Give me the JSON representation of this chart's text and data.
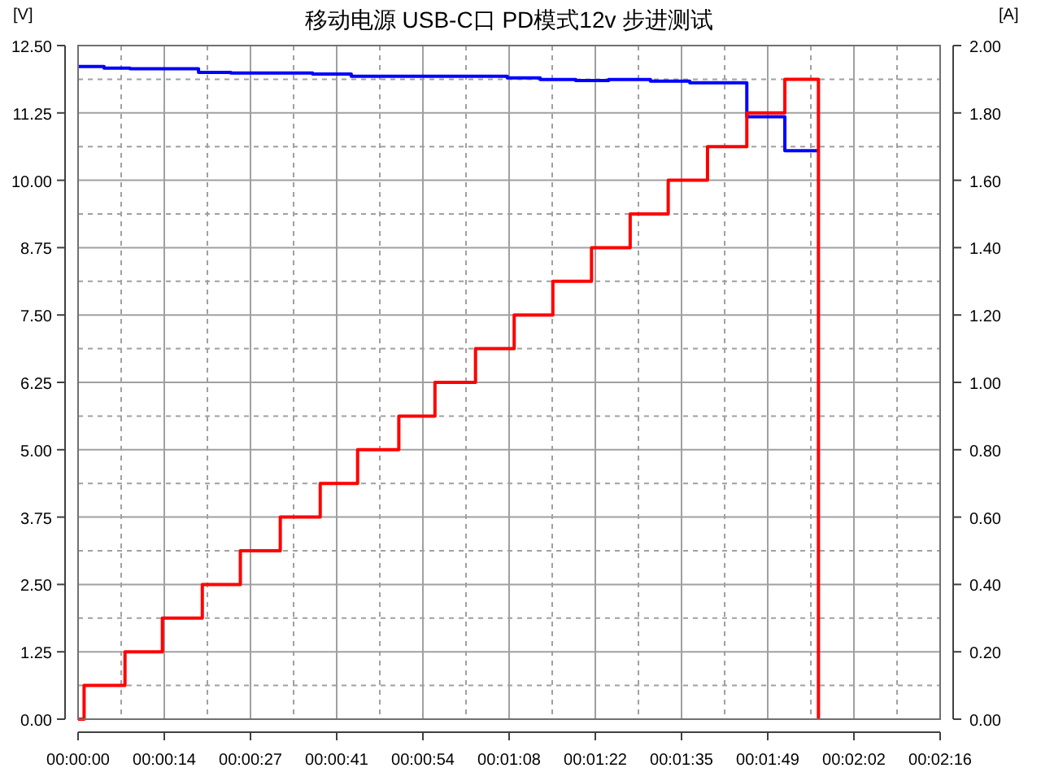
{
  "chart_data": {
    "type": "step",
    "title": "移动电源  USB-C口  PD模式12v 步进测试",
    "ylabel": "[V]",
    "y2label": "[A]",
    "xlim": [
      0,
      136
    ],
    "xticks": [
      {
        "value": 0,
        "label": "00:00:00"
      },
      {
        "value": 13.6,
        "label": "00:00:14"
      },
      {
        "value": 27.2,
        "label": "00:00:27"
      },
      {
        "value": 40.8,
        "label": "00:00:41"
      },
      {
        "value": 54.4,
        "label": "00:00:54"
      },
      {
        "value": 68,
        "label": "00:01:08"
      },
      {
        "value": 81.6,
        "label": "00:01:22"
      },
      {
        "value": 95.2,
        "label": "00:01:35"
      },
      {
        "value": 108.8,
        "label": "00:01:49"
      },
      {
        "value": 122.4,
        "label": "00:02:02"
      },
      {
        "value": 136,
        "label": "00:02:16"
      }
    ],
    "ylim": [
      0,
      12.5
    ],
    "yticks": [
      {
        "value": 0,
        "label": "0.00"
      },
      {
        "value": 1.25,
        "label": "1.25"
      },
      {
        "value": 2.5,
        "label": "2.50"
      },
      {
        "value": 3.75,
        "label": "3.75"
      },
      {
        "value": 5,
        "label": "5.00"
      },
      {
        "value": 6.25,
        "label": "6.25"
      },
      {
        "value": 7.5,
        "label": "7.50"
      },
      {
        "value": 8.75,
        "label": "8.75"
      },
      {
        "value": 10,
        "label": "10.00"
      },
      {
        "value": 11.25,
        "label": "11.25"
      },
      {
        "value": 12.5,
        "label": "12.50"
      }
    ],
    "y2lim": [
      0,
      2
    ],
    "y2ticks": [
      {
        "value": 0,
        "label": "0.00"
      },
      {
        "value": 0.2,
        "label": "0.20"
      },
      {
        "value": 0.4,
        "label": "0.40"
      },
      {
        "value": 0.6,
        "label": "0.60"
      },
      {
        "value": 0.8,
        "label": "0.80"
      },
      {
        "value": 1,
        "label": "1.00"
      },
      {
        "value": 1.2,
        "label": "1.20"
      },
      {
        "value": 1.4,
        "label": "1.40"
      },
      {
        "value": 1.6,
        "label": "1.60"
      },
      {
        "value": 1.8,
        "label": "1.80"
      },
      {
        "value": 2,
        "label": "2.00"
      }
    ],
    "grid": true,
    "series": [
      {
        "color": "#0000ff",
        "x": [
          0,
          4.1,
          8.2,
          19,
          24.1,
          37,
          43.1,
          61.6,
          67.7,
          72.9,
          78.5,
          83.7,
          90.3,
          96.5,
          105.5,
          111.5,
          116.8
        ],
        "values": [
          12.11,
          12.08,
          12.07,
          12.0,
          11.99,
          11.97,
          11.93,
          11.93,
          11.9,
          11.87,
          11.85,
          11.87,
          11.84,
          11.81,
          11.18,
          10.55,
          10.55
        ]
      },
      {
        "color": "#ff0000",
        "axis": "y2",
        "x": [
          0,
          0.95,
          7.4,
          13.3,
          19.6,
          25.6,
          31.9,
          38.2,
          44.1,
          50.6,
          56.3,
          62.7,
          68.8,
          74.9,
          81.0,
          87.1,
          93.1,
          99.3,
          105.5,
          111.5,
          116.8
        ],
        "values": [
          0,
          0.1,
          0.2,
          0.3,
          0.4,
          0.5,
          0.6,
          0.7,
          0.8,
          0.9,
          1.0,
          1.1,
          1.2,
          1.3,
          1.4,
          1.5,
          1.6,
          1.7,
          1.8,
          1.9,
          0
        ]
      }
    ]
  }
}
